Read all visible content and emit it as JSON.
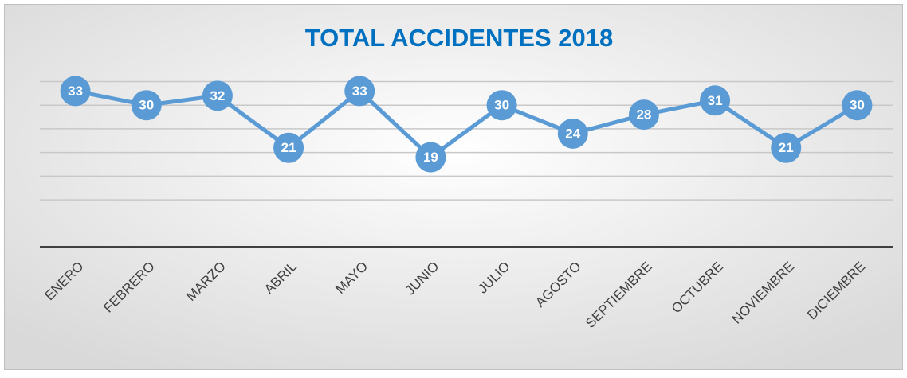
{
  "chart_data": {
    "type": "line",
    "title": "TOTAL ACCIDENTES 2018",
    "categories": [
      "ENERO",
      "FEBRERO",
      "MARZO",
      "ABRIL",
      "MAYO",
      "JUNIO",
      "JULIO",
      "AGOSTO",
      "SEPTIEMBRE",
      "OCTUBRE",
      "NOVIEMBRE",
      "DICIEMBRE"
    ],
    "series": [
      {
        "name": "TOTAL ACCIDENTES 2018",
        "color": "#5b9bd5",
        "values": [
          33,
          30,
          32,
          21,
          33,
          19,
          30,
          24,
          28,
          31,
          21,
          30
        ]
      }
    ],
    "ylim": [
      0,
      35
    ],
    "yticks": [
      10,
      15,
      20,
      25,
      30,
      35
    ],
    "grid": true
  }
}
